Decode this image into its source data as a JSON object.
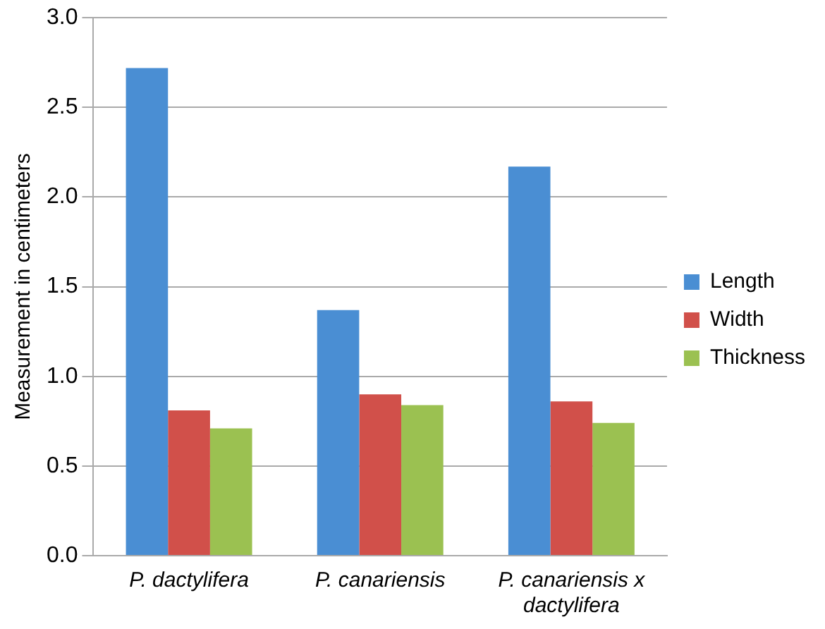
{
  "chart_data": {
    "type": "bar",
    "ylabel": "Measurement in centimeters",
    "categories": [
      "P. dactylifera",
      "P. canariensis",
      "P. canariensis x dactylifera"
    ],
    "series": [
      {
        "name": "Length",
        "color": "#4a8ed3",
        "values": [
          2.72,
          1.37,
          2.17
        ]
      },
      {
        "name": "Width",
        "color": "#d1504a",
        "values": [
          0.81,
          0.9,
          0.86
        ]
      },
      {
        "name": "Thickness",
        "color": "#9bc151",
        "values": [
          0.71,
          0.84,
          0.74
        ]
      }
    ],
    "ylim": [
      0,
      3.0
    ],
    "yticks": [
      {
        "value": 0,
        "label": "0.0"
      },
      {
        "value": 0.5,
        "label": "0.5"
      },
      {
        "value": 1,
        "label": "1.0"
      },
      {
        "value": 1.5,
        "label": "1.5"
      },
      {
        "value": 2,
        "label": "2.0"
      },
      {
        "value": 2.5,
        "label": "2.5"
      },
      {
        "value": 3,
        "label": "3.0"
      }
    ],
    "grid": "y",
    "legend": "right"
  }
}
